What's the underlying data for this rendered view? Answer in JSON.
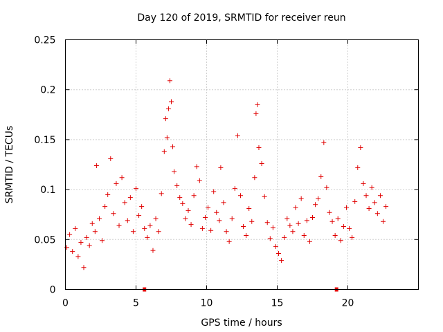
{
  "chart_data": {
    "type": "scatter",
    "title": "Day 120 of 2019, SRMTID for receiver reun",
    "xlabel": "GPS time / hours",
    "ylabel": "SRMTID / TECUs",
    "xlim": [
      0,
      25
    ],
    "ylim": [
      0,
      0.25
    ],
    "grid": true,
    "x_ticks": [
      0,
      5,
      10,
      15,
      20
    ],
    "x_tick_labels": [
      "0",
      "5",
      "10",
      "15",
      "20"
    ],
    "y_ticks": [
      0,
      0.05,
      0.1,
      0.15,
      0.2,
      0.25
    ],
    "y_tick_labels": [
      "0",
      "0.05",
      "0.1",
      "0.15",
      "0.2",
      "0.25"
    ],
    "marker": "+",
    "color": "#e00000",
    "flag_color": "#e00000",
    "flag_x": [
      5.6,
      19.2
    ],
    "series": [
      {
        "name": "SRMTID",
        "points": [
          [
            0.1,
            0.042
          ],
          [
            0.3,
            0.055
          ],
          [
            0.5,
            0.038
          ],
          [
            0.7,
            0.061
          ],
          [
            0.9,
            0.033
          ],
          [
            1.1,
            0.047
          ],
          [
            1.3,
            0.022
          ],
          [
            1.5,
            0.052
          ],
          [
            1.7,
            0.044
          ],
          [
            1.9,
            0.066
          ],
          [
            2.1,
            0.058
          ],
          [
            2.2,
            0.124
          ],
          [
            2.4,
            0.071
          ],
          [
            2.6,
            0.049
          ],
          [
            2.8,
            0.083
          ],
          [
            3.0,
            0.095
          ],
          [
            3.2,
            0.131
          ],
          [
            3.4,
            0.076
          ],
          [
            3.6,
            0.106
          ],
          [
            3.8,
            0.064
          ],
          [
            4.0,
            0.112
          ],
          [
            4.2,
            0.087
          ],
          [
            4.4,
            0.069
          ],
          [
            4.6,
            0.092
          ],
          [
            4.8,
            0.058
          ],
          [
            5.0,
            0.101
          ],
          [
            5.2,
            0.074
          ],
          [
            5.4,
            0.083
          ],
          [
            5.6,
            0.061
          ],
          [
            5.8,
            0.052
          ],
          [
            6.0,
            0.064
          ],
          [
            6.2,
            0.039
          ],
          [
            6.4,
            0.071
          ],
          [
            6.6,
            0.058
          ],
          [
            6.8,
            0.096
          ],
          [
            7.0,
            0.138
          ],
          [
            7.1,
            0.171
          ],
          [
            7.2,
            0.152
          ],
          [
            7.3,
            0.181
          ],
          [
            7.4,
            0.209
          ],
          [
            7.5,
            0.188
          ],
          [
            7.6,
            0.143
          ],
          [
            7.7,
            0.118
          ],
          [
            7.9,
            0.104
          ],
          [
            8.1,
            0.092
          ],
          [
            8.3,
            0.086
          ],
          [
            8.5,
            0.071
          ],
          [
            8.7,
            0.079
          ],
          [
            8.9,
            0.065
          ],
          [
            9.1,
            0.094
          ],
          [
            9.3,
            0.123
          ],
          [
            9.5,
            0.109
          ],
          [
            9.7,
            0.061
          ],
          [
            9.9,
            0.072
          ],
          [
            10.1,
            0.082
          ],
          [
            10.3,
            0.059
          ],
          [
            10.5,
            0.098
          ],
          [
            10.7,
            0.077
          ],
          [
            10.9,
            0.069
          ],
          [
            11.0,
            0.122
          ],
          [
            11.2,
            0.087
          ],
          [
            11.4,
            0.058
          ],
          [
            11.6,
            0.048
          ],
          [
            11.8,
            0.071
          ],
          [
            12.0,
            0.101
          ],
          [
            12.2,
            0.154
          ],
          [
            12.4,
            0.094
          ],
          [
            12.6,
            0.063
          ],
          [
            12.8,
            0.054
          ],
          [
            13.0,
            0.081
          ],
          [
            13.2,
            0.068
          ],
          [
            13.4,
            0.112
          ],
          [
            13.5,
            0.176
          ],
          [
            13.6,
            0.185
          ],
          [
            13.7,
            0.142
          ],
          [
            13.9,
            0.126
          ],
          [
            14.1,
            0.093
          ],
          [
            14.3,
            0.067
          ],
          [
            14.5,
            0.051
          ],
          [
            14.7,
            0.062
          ],
          [
            14.9,
            0.043
          ],
          [
            15.1,
            0.036
          ],
          [
            15.3,
            0.029
          ],
          [
            15.5,
            0.052
          ],
          [
            15.7,
            0.071
          ],
          [
            15.9,
            0.064
          ],
          [
            16.1,
            0.058
          ],
          [
            16.3,
            0.082
          ],
          [
            16.5,
            0.066
          ],
          [
            16.7,
            0.091
          ],
          [
            16.9,
            0.054
          ],
          [
            17.1,
            0.069
          ],
          [
            17.3,
            0.048
          ],
          [
            17.5,
            0.072
          ],
          [
            17.7,
            0.085
          ],
          [
            17.9,
            0.091
          ],
          [
            18.1,
            0.113
          ],
          [
            18.3,
            0.147
          ],
          [
            18.5,
            0.102
          ],
          [
            18.7,
            0.077
          ],
          [
            18.9,
            0.068
          ],
          [
            19.1,
            0.054
          ],
          [
            19.3,
            0.071
          ],
          [
            19.5,
            0.049
          ],
          [
            19.7,
            0.063
          ],
          [
            19.9,
            0.082
          ],
          [
            20.1,
            0.061
          ],
          [
            20.3,
            0.052
          ],
          [
            20.5,
            0.088
          ],
          [
            20.7,
            0.122
          ],
          [
            20.9,
            0.142
          ],
          [
            21.1,
            0.106
          ],
          [
            21.3,
            0.094
          ],
          [
            21.5,
            0.081
          ],
          [
            21.7,
            0.102
          ],
          [
            21.9,
            0.087
          ],
          [
            22.1,
            0.076
          ],
          [
            22.3,
            0.094
          ],
          [
            22.5,
            0.068
          ],
          [
            22.7,
            0.083
          ]
        ]
      }
    ]
  }
}
